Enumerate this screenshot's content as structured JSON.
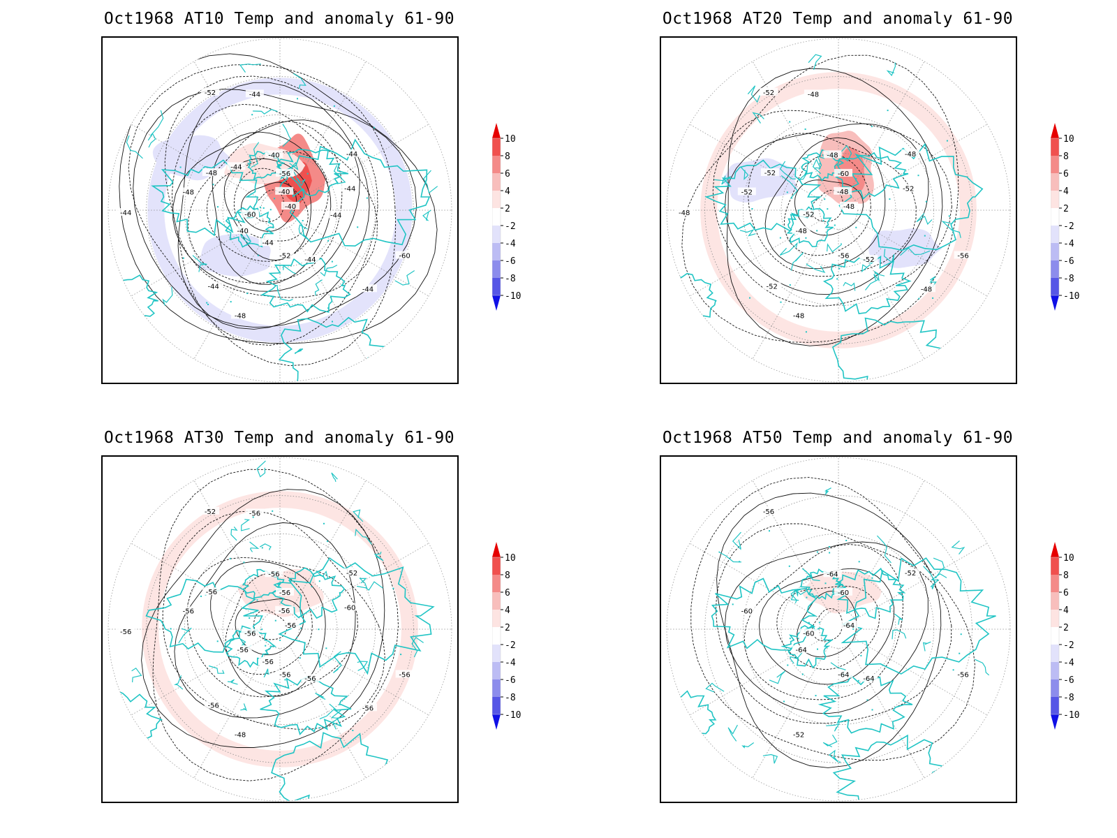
{
  "colorbar": {
    "labels": [
      "10",
      "8",
      "6",
      "4",
      "2",
      "-2",
      "-4",
      "-6",
      "-8",
      "-10"
    ],
    "colors": [
      "#e60000",
      "#f0504e",
      "#f48a88",
      "#f8bebc",
      "#fde4e2",
      "#ffffff",
      "#e2e2fb",
      "#bcbcf4",
      "#8c8cec",
      "#5656e6",
      "#1010e6"
    ],
    "arrow_high_color": "#e60000",
    "arrow_low_color": "#1010e6"
  },
  "coast_color": "#1fc4c4",
  "panels": [
    {
      "title": "Oct1968 AT10 Temp and anomaly 61-90",
      "contour_labels": [
        "-40",
        "-40",
        "-40",
        "-44",
        "-48",
        "-44",
        "-48",
        "-52",
        "-60",
        "-60",
        "-56",
        "-52",
        "-48",
        "-44",
        "-44",
        "-44",
        "-44",
        "-44",
        "-40",
        "-44",
        "-44",
        "-44"
      ],
      "anomaly": [
        {
          "sign": "pos",
          "level": 6,
          "lon": 160,
          "lat": 72
        },
        {
          "sign": "pos",
          "level": 2,
          "lon": 200,
          "lat": 65
        },
        {
          "sign": "neg",
          "level": -2,
          "lon": -45,
          "lat": 55
        },
        {
          "sign": "neg",
          "level": -2,
          "lon": -120,
          "lat": 35
        },
        {
          "sign": "neg",
          "level": -2,
          "lon": -60,
          "lat": 25
        }
      ]
    },
    {
      "title": "Oct1968 AT20 Temp and anomaly 61-90",
      "contour_labels": [
        "-48",
        "-48",
        "-48",
        "-52",
        "-52",
        "-48",
        "-48",
        "-52",
        "-56",
        "-52",
        "-60",
        "-56",
        "-52",
        "-52",
        "-52",
        "-48",
        "-48",
        "-48",
        "-48"
      ],
      "anomaly": [
        {
          "sign": "pos",
          "level": 2,
          "lon": 0,
          "lat": 22
        },
        {
          "sign": "pos",
          "level": 4,
          "lon": 170,
          "lat": 68
        },
        {
          "sign": "neg",
          "level": -2,
          "lon": -110,
          "lat": 45
        },
        {
          "sign": "neg",
          "level": -2,
          "lon": 60,
          "lat": 50
        }
      ]
    },
    {
      "title": "Oct1968 AT30 Temp and anomaly 61-90",
      "contour_labels": [
        "-56",
        "-56",
        "-56",
        "-56",
        "-56",
        "-52",
        "-48",
        "-52",
        "-56",
        "-56",
        "-56",
        "-56",
        "-56",
        "-60",
        "-56",
        "-56",
        "-56",
        "-56",
        "-56",
        "-56"
      ],
      "anomaly": [
        {
          "sign": "pos",
          "level": 2,
          "lon": 180,
          "lat": 22
        },
        {
          "sign": "pos",
          "level": 2,
          "lon": 170,
          "lat": 70
        },
        {
          "sign": "pos",
          "level": 2,
          "lon": -170,
          "lat": 72
        }
      ]
    },
    {
      "title": "Oct1968 AT50 Temp and anomaly 61-90",
      "contour_labels": [
        "-64",
        "-64",
        "-64",
        "-64",
        "-60",
        "-52",
        "-52",
        "-56",
        "-56",
        "-60",
        "-60",
        "-64"
      ],
      "anomaly": [
        {
          "sign": "pos",
          "level": 2,
          "lon": 175,
          "lat": 70
        }
      ]
    }
  ]
}
